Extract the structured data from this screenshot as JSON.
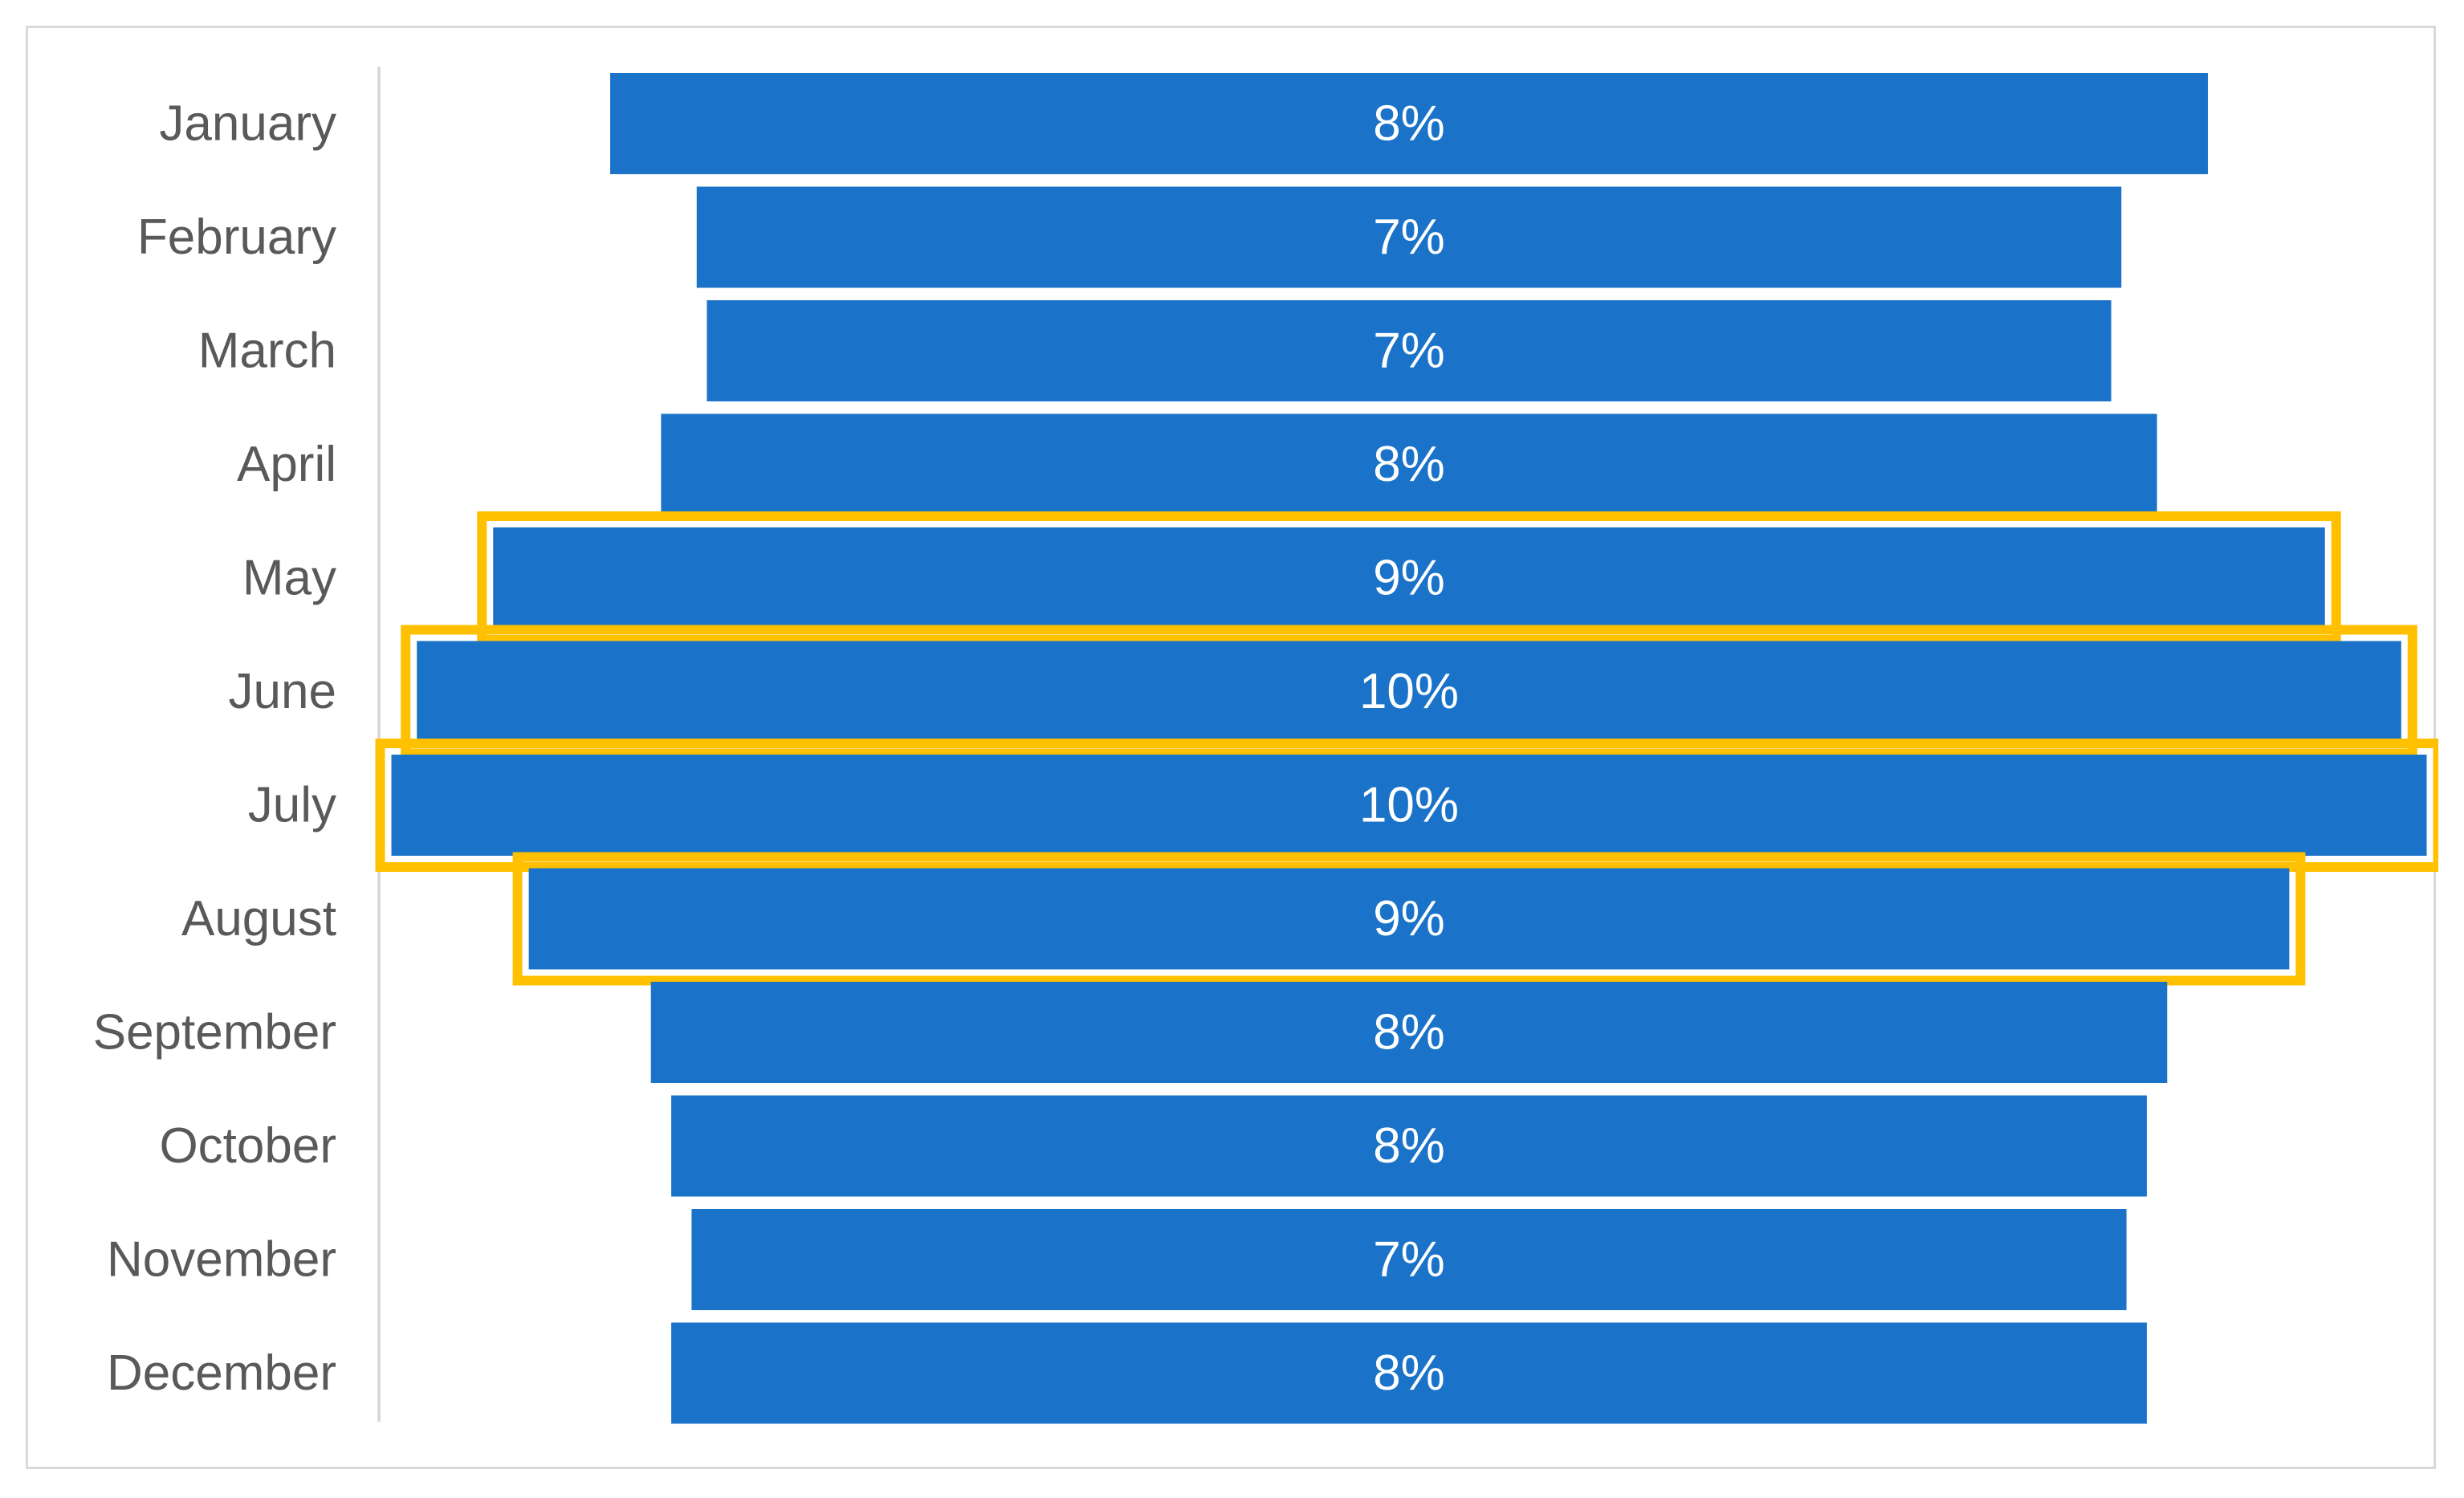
{
  "chart_data": {
    "type": "bar",
    "orientation": "horizontal",
    "style": "centered-funnel",
    "categories": [
      "January",
      "February",
      "March",
      "April",
      "May",
      "June",
      "July",
      "August",
      "September",
      "October",
      "November",
      "December"
    ],
    "values": [
      7.85,
      7.0,
      6.9,
      7.35,
      9.0,
      9.75,
      10.0,
      8.65,
      7.45,
      7.25,
      7.05,
      7.25
    ],
    "value_labels": [
      "8%",
      "7%",
      "7%",
      "8%",
      "9%",
      "10%",
      "10%",
      "9%",
      "8%",
      "8%",
      "7%",
      "8%"
    ],
    "highlighted": [
      "May",
      "June",
      "July",
      "August"
    ],
    "bar_color": "#1a73c8",
    "highlight_color": "#ffc000",
    "label_color": "#595959",
    "title": "",
    "xlabel": "",
    "ylabel": "",
    "legend": "none",
    "grid": false
  }
}
